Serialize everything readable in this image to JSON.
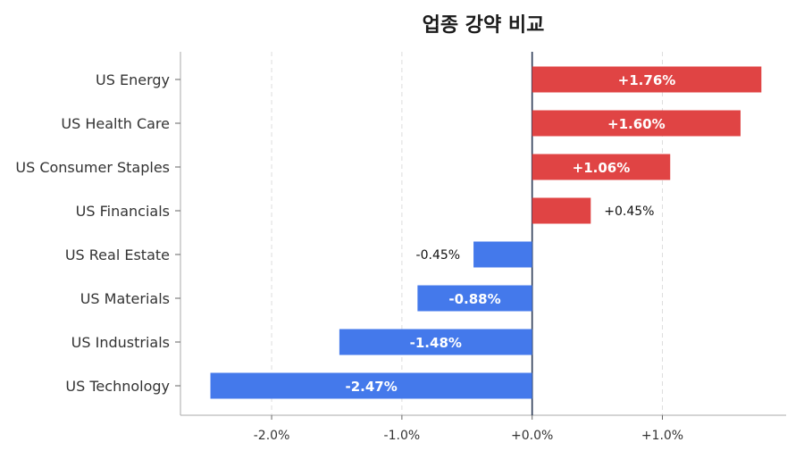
{
  "chart_data": {
    "type": "bar",
    "orientation": "horizontal",
    "title": "업종 강약 비교",
    "categories": [
      "US Energy",
      "US Health Care",
      "US Consumer Staples",
      "US Financials",
      "US Real Estate",
      "US Materials",
      "US Industrials",
      "US Technology"
    ],
    "values": [
      1.76,
      1.6,
      1.06,
      0.45,
      -0.45,
      -0.88,
      -1.48,
      -2.47
    ],
    "value_labels": [
      "+1.76%",
      "+1.60%",
      "+1.06%",
      "+0.45%",
      "-0.45%",
      "-0.88%",
      "-1.48%",
      "-2.47%"
    ],
    "xlim": [
      -2.7,
      1.95
    ],
    "xticks": [
      -2.0,
      -1.0,
      0.0,
      1.0
    ],
    "xtick_labels": [
      "-2.0%",
      "-1.0%",
      "+0.0%",
      "+1.0%"
    ],
    "grid": "vertical-dashed",
    "colors": {
      "positive": "#e04444",
      "negative": "#4479eb",
      "zero_line": "#2b3a55",
      "grid": "#dddddd",
      "axis": "#aaaaaa"
    }
  }
}
